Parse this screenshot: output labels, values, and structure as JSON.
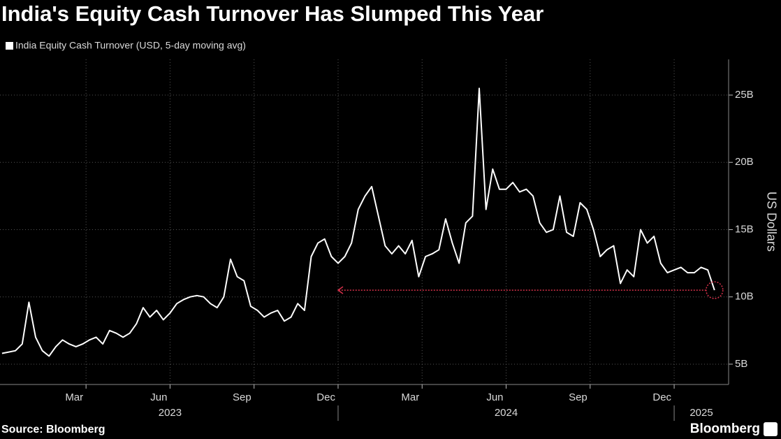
{
  "chart_data": {
    "type": "line",
    "title": "India's Equity Cash Turnover Has Slumped This Year",
    "y_label": "US Dollars",
    "source": "Source: Bloomberg",
    "brand": "Bloomberg",
    "background": "#000000",
    "grid": true,
    "x": [
      2023.0,
      2023.02,
      2023.04,
      2023.06,
      2023.08,
      2023.1,
      2023.12,
      2023.14,
      2023.16,
      2023.18,
      2023.2,
      2023.22,
      2023.24,
      2023.26,
      2023.28,
      2023.3,
      2023.32,
      2023.34,
      2023.36,
      2023.38,
      2023.4,
      2023.42,
      2023.44,
      2023.46,
      2023.48,
      2023.5,
      2023.52,
      2023.54,
      2023.56,
      2023.58,
      2023.6,
      2023.62,
      2023.64,
      2023.66,
      2023.68,
      2023.7,
      2023.72,
      2023.74,
      2023.76,
      2023.78,
      2023.8,
      2023.82,
      2023.84,
      2023.86,
      2023.88,
      2023.9,
      2023.92,
      2023.94,
      2023.96,
      2023.98,
      2024.0,
      2024.02,
      2024.04,
      2024.06,
      2024.08,
      2024.1,
      2024.12,
      2024.14,
      2024.16,
      2024.18,
      2024.2,
      2024.22,
      2024.24,
      2024.26,
      2024.28,
      2024.3,
      2024.32,
      2024.34,
      2024.36,
      2024.38,
      2024.4,
      2024.42,
      2024.44,
      2024.46,
      2024.48,
      2024.5,
      2024.52,
      2024.54,
      2024.56,
      2024.58,
      2024.6,
      2024.62,
      2024.64,
      2024.66,
      2024.68,
      2024.7,
      2024.72,
      2024.74,
      2024.76,
      2024.78,
      2024.8,
      2024.82,
      2024.84,
      2024.86,
      2024.88,
      2024.9,
      2024.92,
      2024.94,
      2024.96,
      2024.98,
      2025.0,
      2025.02,
      2025.04,
      2025.06,
      2025.08,
      2025.1,
      2025.12
    ],
    "series": [
      {
        "name": "India Equity Cash Turnover (USD, 5-day moving avg)",
        "color": "#ffffff",
        "values": [
          5.8,
          5.9,
          6.0,
          6.5,
          9.6,
          7.0,
          6.0,
          5.6,
          6.3,
          6.8,
          6.5,
          6.3,
          6.5,
          6.8,
          7.0,
          6.5,
          7.5,
          7.3,
          7.0,
          7.3,
          8.0,
          9.2,
          8.5,
          9.0,
          8.3,
          8.8,
          9.5,
          9.8,
          10.0,
          10.1,
          10.0,
          9.5,
          9.2,
          10.0,
          12.8,
          11.5,
          11.2,
          9.3,
          9.0,
          8.5,
          8.8,
          9.0,
          8.2,
          8.5,
          9.5,
          9.0,
          13.0,
          14.0,
          14.3,
          13.0,
          12.5,
          13.0,
          14.0,
          16.5,
          17.5,
          18.2,
          16.0,
          13.8,
          13.2,
          13.8,
          13.2,
          14.2,
          11.5,
          13.0,
          13.2,
          13.5,
          15.8,
          14.0,
          12.5,
          15.5,
          16.0,
          25.5,
          16.5,
          19.5,
          18.0,
          18.0,
          18.5,
          17.8,
          18.0,
          17.5,
          15.5,
          14.8,
          15.0,
          17.5,
          14.8,
          14.5,
          17.0,
          16.5,
          15.0,
          13.0,
          13.5,
          13.8,
          11.0,
          12.0,
          11.5,
          15.0,
          14.0,
          14.5,
          12.5,
          11.8,
          12.0,
          12.2,
          11.8,
          11.8,
          12.2,
          12.0,
          10.5
        ]
      }
    ],
    "xlim": [
      2022.994,
      2025.162
    ],
    "xticks": [
      {
        "value": 2023.25,
        "label": "Mar"
      },
      {
        "value": 2023.5,
        "label": "Jun"
      },
      {
        "value": 2023.75,
        "label": "Sep"
      },
      {
        "value": 2024,
        "label": "Dec"
      },
      {
        "value": 2024.25,
        "label": "Mar"
      },
      {
        "value": 2024.5,
        "label": "Jun"
      },
      {
        "value": 2024.75,
        "label": "Sep"
      },
      {
        "value": 2025,
        "label": "Dec"
      }
    ],
    "xgroups": [
      {
        "value": 2023,
        "label": "2023"
      },
      {
        "value": 2024,
        "label": "2024"
      },
      {
        "value": 2025,
        "label": "2025"
      }
    ],
    "ylim": [
      3.49,
      27.65
    ],
    "yticks": [
      {
        "value": 5,
        "label": "5B"
      },
      {
        "value": 10,
        "label": "10B"
      },
      {
        "value": 15,
        "label": "15B"
      },
      {
        "value": 20,
        "label": "20B"
      },
      {
        "value": 25,
        "label": "25B"
      }
    ],
    "annotation_arrow": {
      "to_x": 2024.0,
      "color": "#d6304a"
    }
  }
}
